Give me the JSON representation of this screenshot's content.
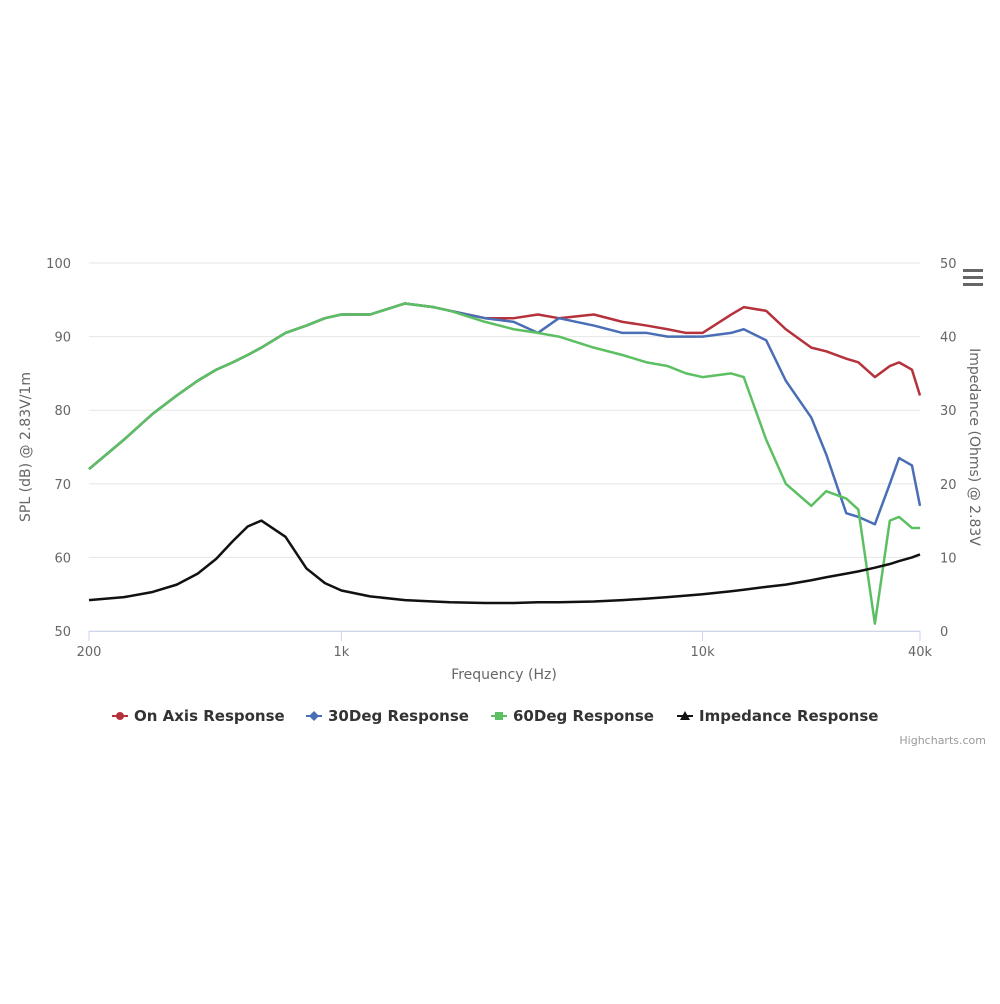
{
  "chart_data": {
    "type": "line",
    "x_label": "Frequency (Hz)",
    "y_label": "SPL (dB) @ 2.83V/1m",
    "y2_label": "Impedance (Ohms) @ 2.83V",
    "credits": "Highcharts.com",
    "log_x": true,
    "grid": true,
    "legend": "bottom",
    "xlim": [
      200,
      40000
    ],
    "xticks": [
      {
        "value": 200,
        "label": "200"
      },
      {
        "value": 1000,
        "label": "1k"
      },
      {
        "value": 10000,
        "label": "10k"
      },
      {
        "value": 40000,
        "label": "40k"
      }
    ],
    "ylim": [
      50,
      100
    ],
    "yticks": [
      50,
      60,
      70,
      80,
      90,
      100
    ],
    "y2lim": [
      0,
      50
    ],
    "y2ticks": [
      0,
      10,
      20,
      30,
      40,
      50
    ],
    "x": [
      200,
      250,
      300,
      350,
      400,
      450,
      500,
      550,
      600,
      700,
      800,
      900,
      1000,
      1200,
      1500,
      1800,
      2000,
      2500,
      3000,
      3500,
      4000,
      5000,
      6000,
      7000,
      8000,
      9000,
      10000,
      12000,
      13000,
      15000,
      17000,
      20000,
      22000,
      25000,
      27000,
      30000,
      33000,
      35000,
      38000,
      40000
    ],
    "series": [
      {
        "name": "On Axis Response",
        "color": "#b5323c",
        "marker": "circle",
        "values": [
          72,
          76,
          79.5,
          82,
          84,
          85.5,
          86.5,
          87.5,
          88.5,
          90.5,
          91.5,
          92.5,
          93,
          93,
          94.5,
          94,
          93.5,
          92.5,
          92.5,
          93,
          92.5,
          93,
          92,
          91.5,
          91,
          90.5,
          90.5,
          93,
          94,
          93.5,
          91,
          88.5,
          88,
          87,
          86.5,
          84.5,
          86,
          86.5,
          85.5,
          82
        ]
      },
      {
        "name": "30Deg Response",
        "color": "#4a6eb5",
        "marker": "diamond",
        "values": [
          72,
          76,
          79.5,
          82,
          84,
          85.5,
          86.5,
          87.5,
          88.5,
          90.5,
          91.5,
          92.5,
          93,
          93,
          94.5,
          94,
          93.5,
          92.5,
          92,
          90.5,
          92.5,
          91.5,
          90.5,
          90.5,
          90,
          90,
          90,
          90.5,
          91,
          89.5,
          84,
          79,
          74,
          66,
          65.5,
          64.5,
          70,
          73.5,
          72.5,
          67
        ]
      },
      {
        "name": "60Deg Response",
        "color": "#5cc062",
        "marker": "square",
        "values": [
          72,
          76,
          79.5,
          82,
          84,
          85.5,
          86.5,
          87.5,
          88.5,
          90.5,
          91.5,
          92.5,
          93,
          93,
          94.5,
          94,
          93.5,
          92,
          91,
          90.5,
          90,
          88.5,
          87.5,
          86.5,
          86,
          85,
          84.5,
          85,
          84.5,
          76,
          70,
          67,
          69,
          68,
          66.5,
          51,
          65,
          65.5,
          64,
          64
        ]
      },
      {
        "name": "Impedance Response",
        "color": "#111111",
        "marker": "triangle",
        "axis": "y2",
        "values": [
          4.2,
          4.6,
          5.3,
          6.3,
          7.8,
          9.8,
          12.2,
          14.2,
          15,
          12.8,
          8.5,
          6.5,
          5.5,
          4.7,
          4.2,
          4,
          3.9,
          3.8,
          3.8,
          3.9,
          3.9,
          4,
          4.2,
          4.4,
          4.6,
          4.8,
          5,
          5.4,
          5.6,
          6,
          6.3,
          6.9,
          7.3,
          7.8,
          8.1,
          8.6,
          9.1,
          9.5,
          10,
          10.4
        ]
      }
    ]
  }
}
